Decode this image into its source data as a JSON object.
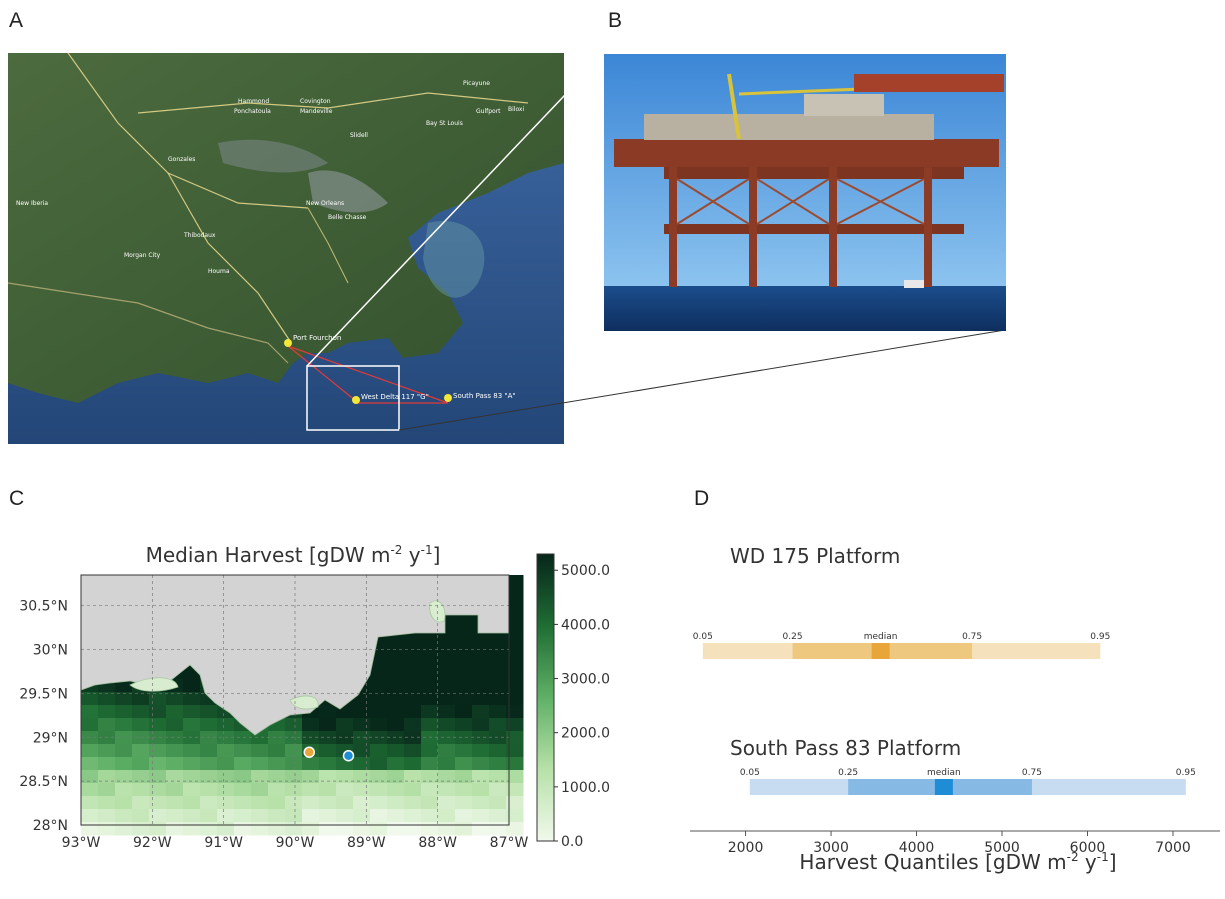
{
  "panels": {
    "a": {
      "letter": "A",
      "map_places": [
        "Picayune",
        "Hammond",
        "Covington",
        "Ponchatoula",
        "Mandeville",
        "Slidell",
        "Gulfport",
        "Biloxi",
        "Bay St Louis",
        "Gonzales",
        "New Orleans",
        "Belle Chasse",
        "New Iberia",
        "Thibodaux",
        "Morgan City",
        "Houma"
      ],
      "sites": {
        "port": "Port Fourchon",
        "west_delta": "West Delta 117 \"G\"",
        "south_pass": "South Pass 83 \"A\""
      }
    },
    "b": {
      "letter": "B"
    },
    "c": {
      "letter": "C"
    },
    "d": {
      "letter": "D"
    }
  },
  "colors": {
    "orange": "#e8a53a",
    "orange_light": "#f5e2bd",
    "orange_mid": "#eec87e",
    "blue": "#1f8dd6",
    "blue_light": "#c7dcf1",
    "blue_mid": "#86b9e4",
    "land": "#d3d3d3",
    "water_map": "#2b4f86"
  },
  "chart_data": [
    {
      "type": "heatmap",
      "title_main": "Median Harvest [gDW m",
      "title_sup1": "-2",
      "title_mid": " y",
      "title_sup2": "-1",
      "title_end": "]",
      "x_ticks": [
        {
          "value": -93,
          "label": "93°W"
        },
        {
          "value": -92,
          "label": "92°W"
        },
        {
          "value": -91,
          "label": "91°W"
        },
        {
          "value": -90,
          "label": "90°W"
        },
        {
          "value": -89,
          "label": "89°W"
        },
        {
          "value": -88,
          "label": "88°W"
        },
        {
          "value": -87,
          "label": "87°W"
        }
      ],
      "y_ticks": [
        {
          "value": 28.0,
          "label": "28°N"
        },
        {
          "value": 28.5,
          "label": "28.5°N"
        },
        {
          "value": 29.0,
          "label": "29°N"
        },
        {
          "value": 29.5,
          "label": "29.5°N"
        },
        {
          "value": 30.0,
          "label": "30°N"
        },
        {
          "value": 30.5,
          "label": "30.5°N"
        }
      ],
      "xlim": [
        -93,
        -87
      ],
      "ylim": [
        28.0,
        30.85
      ],
      "colorbar": {
        "range": [
          0,
          5300
        ],
        "ticks": [
          {
            "value": 0,
            "label": "0.0"
          },
          {
            "value": 1000,
            "label": "1000.0"
          },
          {
            "value": 2000,
            "label": "2000.0"
          },
          {
            "value": 3000,
            "label": "3000.0"
          },
          {
            "value": 4000,
            "label": "4000.0"
          },
          {
            "value": 5000,
            "label": "5000.0"
          }
        ]
      },
      "grid": true,
      "sites": [
        {
          "lon": -89.8,
          "lat": 28.83,
          "color": "#e8a53a"
        },
        {
          "lon": -89.25,
          "lat": 28.79,
          "color": "#1f8dd6"
        }
      ]
    },
    {
      "type": "boxplot-quantiles",
      "xlabel_main": "Harvest Quantiles [gDW m",
      "xlabel_sup1": "-2",
      "xlabel_mid": " y",
      "xlabel_sup2": "-1",
      "xlabel_end": "]",
      "xlim": [
        1350,
        7550
      ],
      "x_ticks": [
        2000,
        3000,
        4000,
        5000,
        6000,
        7000
      ],
      "series": [
        {
          "name": "WD 175 Platform",
          "q05": 1500,
          "q25": 2550,
          "median": 3580,
          "q75": 4650,
          "q95": 6150,
          "labels": {
            "q05": "0.05",
            "q25": "0.25",
            "median": "median",
            "q75": "0.75",
            "q95": "0.95"
          }
        },
        {
          "name": "South Pass 83 Platform",
          "q05": 2050,
          "q25": 3200,
          "median": 4320,
          "q75": 5350,
          "q95": 7150,
          "labels": {
            "q05": "0.05",
            "q25": "0.25",
            "median": "median",
            "q75": "0.75",
            "q95": "0.95"
          }
        }
      ]
    }
  ]
}
